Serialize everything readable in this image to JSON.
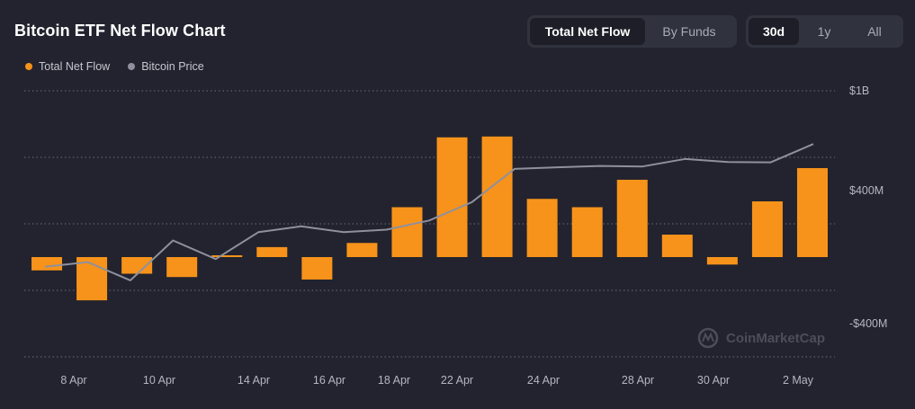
{
  "header": {
    "title": "Bitcoin ETF Net Flow Chart"
  },
  "legend": {
    "items": [
      {
        "label": "Total Net Flow",
        "color": "#f7931a"
      },
      {
        "label": "Bitcoin Price",
        "color": "#8e909e"
      }
    ]
  },
  "toggles": {
    "type": [
      {
        "label": "Total Net Flow",
        "active": true
      },
      {
        "label": "By Funds",
        "active": false
      }
    ],
    "range": [
      {
        "label": "30d",
        "active": true
      },
      {
        "label": "1y",
        "active": false
      },
      {
        "label": "All",
        "active": false
      }
    ]
  },
  "watermark": {
    "text": "CoinMarketCap"
  },
  "chart_data": {
    "type": "bar",
    "series": [
      {
        "name": "Total Net Flow",
        "kind": "bar",
        "color": "#f7931a",
        "axis": "right",
        "values": [
          -80,
          -260,
          -100,
          -120,
          0,
          60,
          -135,
          85,
          300,
          720,
          725,
          350,
          300,
          465,
          135,
          -45,
          335,
          535
        ]
      },
      {
        "name": "Bitcoin Price",
        "kind": "line",
        "color": "#8e909e",
        "values": [
          -58,
          -30,
          -140,
          100,
          -12,
          150,
          185,
          150,
          165,
          220,
          330,
          530,
          540,
          548,
          545,
          590,
          572,
          570,
          680
        ]
      }
    ],
    "x_labels": [
      "8 Apr",
      "10 Apr",
      "14 Apr",
      "16 Apr",
      "18 Apr",
      "22 Apr",
      "24 Apr",
      "28 Apr",
      "30 Apr",
      "2 May"
    ],
    "y_ticks": [
      {
        "value": 1000,
        "label": "$1B"
      },
      {
        "value": 400,
        "label": "$400M"
      },
      {
        "value": -400,
        "label": "-$400M"
      }
    ],
    "gridlines": [
      1000,
      600,
      200,
      -200,
      -600
    ],
    "ylim": [
      -600,
      1000
    ],
    "grid": true,
    "legend_position": "top-left"
  }
}
